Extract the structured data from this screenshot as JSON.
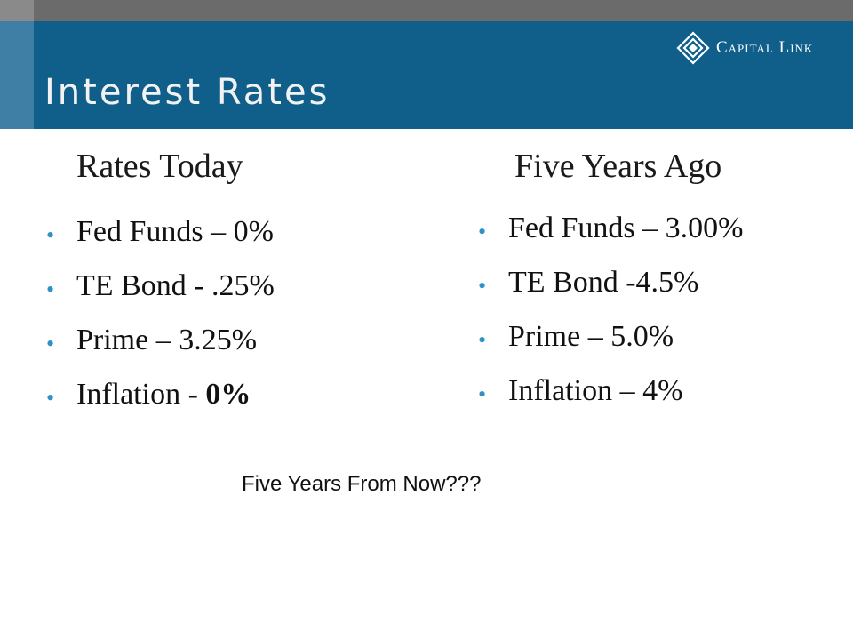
{
  "slide": {
    "title": "Interest Rates",
    "brand": "Capital Link",
    "left": {
      "heading": "Rates Today",
      "items": [
        {
          "label": "Fed Funds – 0%",
          "bold_tail": ""
        },
        {
          "label": "TE Bond - .25%",
          "bold_tail": ""
        },
        {
          "label": "Prime – 3.25%",
          "bold_tail": ""
        },
        {
          "label": "Inflation - ",
          "bold_tail": "0%"
        }
      ]
    },
    "right": {
      "heading": "Five Years Ago",
      "items": [
        {
          "label": "Fed Funds – 3.00%"
        },
        {
          "label": "TE Bond -4.5%"
        },
        {
          "label": "Prime – 5.0%"
        },
        {
          "label": "Inflation – 4%"
        }
      ]
    },
    "footer": "Five Years From Now???"
  },
  "colors": {
    "header": "#0f5f8a",
    "header_stripe": "#3f7fa6",
    "topbar": "#6b6b6b",
    "bullet": "#2e93c4"
  }
}
